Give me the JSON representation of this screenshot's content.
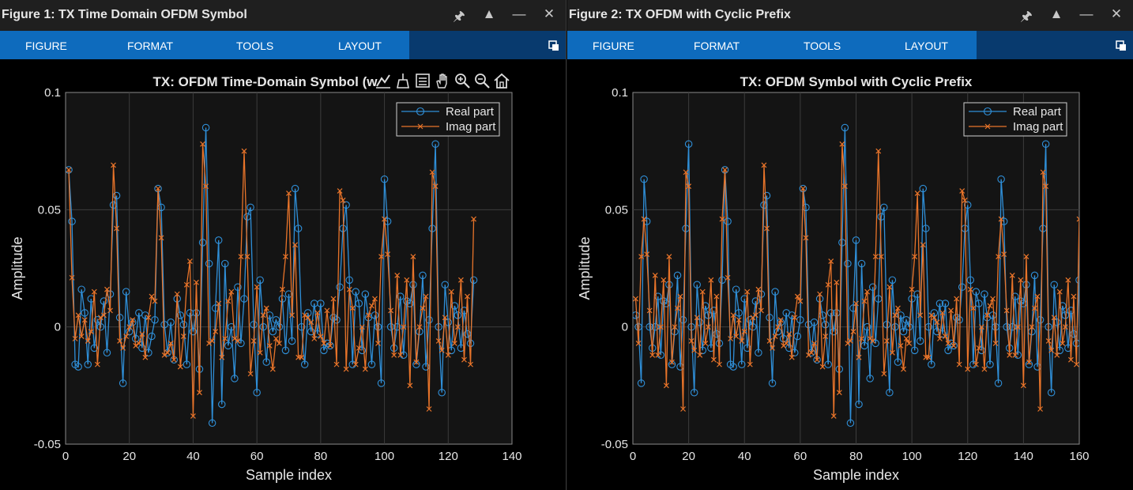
{
  "windows": [
    {
      "title": "Figure 1: TX Time Domain OFDM Symbol",
      "tabs": [
        "FIGURE",
        "FORMAT",
        "TOOLS",
        "LAYOUT"
      ],
      "plot_title": "TX: OFDM Time-Domain Symbol (w",
      "icons": [
        "pin-icon",
        "maximize-icon",
        "minimize-icon",
        "close-icon",
        "undock-icon"
      ],
      "axes_toolbar": [
        "data-tips-icon",
        "brush-icon",
        "data-cursor-icon",
        "pan-icon",
        "zoom-in-icon",
        "zoom-out-icon",
        "home-icon"
      ]
    },
    {
      "title": "Figure 2: TX OFDM with Cyclic Prefix",
      "tabs": [
        "FIGURE",
        "FORMAT",
        "TOOLS",
        "LAYOUT"
      ],
      "plot_title": "TX: OFDM Symbol with Cyclic Prefix",
      "icons": [
        "pin-icon",
        "maximize-icon",
        "minimize-icon",
        "close-icon",
        "undock-icon"
      ]
    }
  ],
  "chart_data": [
    {
      "type": "line",
      "title": "TX: OFDM Time-Domain Symbol (w",
      "xlabel": "Sample index",
      "ylabel": "Amplitude",
      "xlim": [
        0,
        140
      ],
      "ylim": [
        -0.05,
        0.1
      ],
      "xticks": [
        0,
        20,
        40,
        60,
        80,
        100,
        120,
        140
      ],
      "yticks": [
        -0.05,
        0,
        0.05,
        0.1
      ],
      "ytick_labels": [
        "-0.05",
        "0",
        "0.05",
        "0.1"
      ],
      "grid": true,
      "legend_position": "top-right",
      "x_start": 1,
      "series": [
        {
          "name": "Real part",
          "color": "#2f8fd8",
          "marker": "circle",
          "values": [
            0.067,
            0.045,
            -0.016,
            -0.017,
            0.016,
            0.006,
            -0.016,
            0.012,
            -0.009,
            0.003,
            0.0,
            0.011,
            -0.011,
            0.014,
            0.052,
            0.056,
            0.004,
            -0.024,
            0.015,
            -0.002,
            0.002,
            -0.005,
            0.006,
            -0.009,
            0.005,
            -0.011,
            -0.004,
            0.003,
            0.059,
            0.051,
            0.001,
            -0.011,
            0.002,
            -0.014,
            0.012,
            0.005,
            0.001,
            -0.016,
            0.006,
            -0.002,
            0.006,
            -0.018,
            0.036,
            0.085,
            0.027,
            -0.041,
            0.008,
            0.037,
            -0.033,
            0.027,
            -0.008,
            0.0,
            -0.022,
            0.017,
            -0.007,
            0.012,
            0.047,
            0.051,
            0.001,
            -0.028,
            0.02,
            0.0,
            -0.015,
            0.005,
            -0.002,
            0.003,
            0.0,
            0.012,
            -0.01,
            0.014,
            -0.006,
            0.059,
            0.042,
            0.0,
            -0.016,
            0.006,
            -0.002,
            0.01,
            -0.003,
            0.01,
            -0.01,
            -0.007,
            -0.008,
            0.004,
            0.003,
            0.017,
            0.042,
            0.052,
            0.02,
            -0.016,
            0.015,
            0.01,
            -0.01,
            0.014,
            0.004,
            -0.016,
            0.005,
            0.0,
            -0.024,
            0.063,
            0.045,
            0.0,
            -0.009,
            0.0,
            0.013,
            -0.012,
            0.011,
            0.01,
            0.018,
            -0.016,
            -0.002,
            0.022,
            -0.017,
            0.003,
            0.042,
            0.078,
            0.0,
            -0.028,
            0.018,
            0.002,
            -0.01,
            0.009,
            0.005,
            -0.009,
            0.007,
            -0.003,
            -0.007,
            0.02
          ]
        },
        {
          "name": "Imag part",
          "color": "#e8742a",
          "marker": "x",
          "values": [
            0.067,
            0.021,
            -0.005,
            0.005,
            -0.004,
            0.003,
            -0.006,
            -0.002,
            0.015,
            -0.016,
            0.004,
            0.005,
            0.016,
            0.007,
            0.069,
            0.042,
            -0.006,
            -0.009,
            -0.004,
            0.0,
            0.003,
            -0.008,
            -0.007,
            -0.003,
            -0.013,
            0.004,
            0.013,
            0.011,
            0.059,
            0.038,
            -0.012,
            -0.011,
            -0.007,
            -0.014,
            0.014,
            -0.017,
            -0.004,
            0.018,
            0.028,
            -0.038,
            0.019,
            -0.028,
            0.078,
            0.06,
            -0.007,
            -0.006,
            -0.002,
            0.01,
            -0.013,
            -0.005,
            0.011,
            0.015,
            -0.005,
            -0.006,
            0.03,
            0.075,
            0.03,
            -0.02,
            -0.006,
            0.017,
            -0.011,
            0.005,
            0.008,
            -0.008,
            -0.018,
            -0.005,
            -0.007,
            0.016,
            0.03,
            0.057,
            0.005,
            0.035,
            -0.013,
            -0.013,
            0.005,
            0.004,
            0.002,
            -0.005,
            0.006,
            -0.004,
            -0.007,
            0.007,
            -0.008,
            0.012,
            -0.016,
            0.058,
            0.054,
            -0.018,
            0.016,
            0.008,
            -0.016,
            -0.009,
            0.0,
            -0.018,
            0.005,
            0.009,
            0.012,
            -0.007,
            0.03,
            0.046,
            0.031,
            0.007,
            -0.012,
            0.022,
            -0.012,
            0.0,
            0.02,
            -0.025,
            0.03,
            -0.015,
            0.0,
            0.008,
            0.013,
            -0.035,
            0.066,
            0.06,
            -0.006,
            -0.01,
            0.004,
            -0.012,
            0.015,
            -0.007,
            0.0,
            0.02,
            -0.014,
            0.013,
            -0.016,
            0.046
          ]
        }
      ]
    },
    {
      "type": "line",
      "title": "TX: OFDM Symbol with Cyclic Prefix",
      "xlabel": "Sample index",
      "ylabel": "Amplitude",
      "xlim": [
        0,
        160
      ],
      "ylim": [
        -0.05,
        0.1
      ],
      "xticks": [
        0,
        20,
        40,
        60,
        80,
        100,
        120,
        140,
        160
      ],
      "yticks": [
        -0.05,
        0,
        0.05,
        0.1
      ],
      "ytick_labels": [
        "-0.05",
        "0",
        "0.05",
        "0.1"
      ],
      "grid": true,
      "legend_position": "top-right",
      "x_start": 1,
      "cyclic_prefix_length": 32
    }
  ]
}
